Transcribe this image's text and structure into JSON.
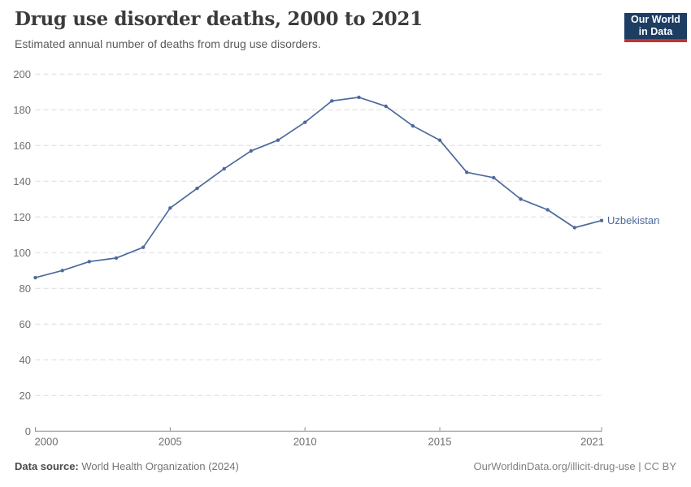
{
  "header": {
    "title": "Drug use disorder deaths, 2000 to 2021",
    "subtitle": "Estimated annual number of deaths from drug use disorders."
  },
  "logo": {
    "line1": "Our World",
    "line2": "in Data"
  },
  "chart_data": {
    "type": "line",
    "title": "Drug use disorder deaths, 2000 to 2021",
    "xlabel": "",
    "ylabel": "",
    "xlim": [
      2000,
      2021
    ],
    "ylim": [
      0,
      200
    ],
    "x_ticks": [
      2000,
      2005,
      2010,
      2015,
      2021
    ],
    "y_ticks": [
      0,
      20,
      40,
      60,
      80,
      100,
      120,
      140,
      160,
      180,
      200
    ],
    "grid": "horizontal-dashed",
    "legend_position": "end-of-line",
    "series": [
      {
        "name": "Uzbekistan",
        "color": "#4C6A9C",
        "x": [
          2000,
          2001,
          2002,
          2003,
          2004,
          2005,
          2006,
          2007,
          2008,
          2009,
          2010,
          2011,
          2012,
          2013,
          2014,
          2015,
          2016,
          2017,
          2018,
          2019,
          2020,
          2021
        ],
        "values": [
          86,
          90,
          95,
          97,
          103,
          125,
          136,
          147,
          157,
          163,
          173,
          185,
          187,
          182,
          171,
          163,
          145,
          142,
          130,
          124,
          114,
          118
        ]
      }
    ]
  },
  "footer": {
    "source_label": "Data source:",
    "source_value": " World Health Organization (2024)",
    "link_text": "OurWorldinData.org/illicit-drug-use",
    "separator": " | ",
    "license": "CC BY"
  },
  "colors": {
    "line": "#4C6A9C",
    "grid": "#dcdcdc",
    "axis": "#8f8f8f",
    "tick_label": "#6e6e6e",
    "title": "#3b3b3b",
    "subtitle": "#5b5b5b",
    "logo_bg": "#1d3d63",
    "logo_accent": "#c5312b"
  }
}
